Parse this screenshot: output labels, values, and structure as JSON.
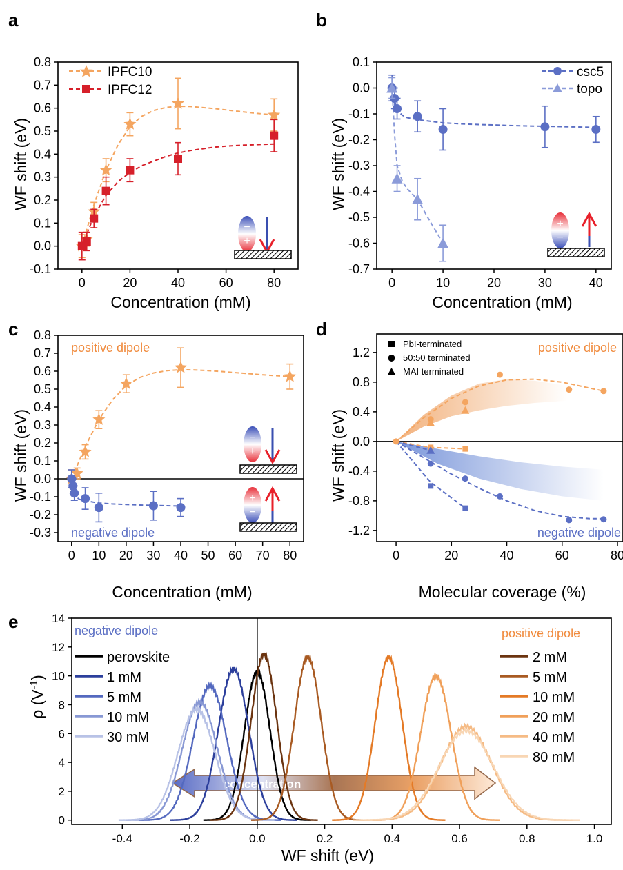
{
  "colors": {
    "orange": "#f4a560",
    "red": "#d6202a",
    "blue": "#5b6fc4",
    "lightblue": "#8b9bd9",
    "black": "#000000"
  },
  "chart_data": [
    {
      "panel": "a",
      "type": "scatter",
      "xlabel": "Concentration (mM)",
      "ylabel": "WF shift (eV)",
      "xlim": [
        -10,
        90
      ],
      "ylim": [
        -0.1,
        0.8
      ],
      "xticks": [
        0,
        20,
        40,
        60,
        80
      ],
      "yticks": [
        -0.1,
        0.0,
        0.1,
        0.2,
        0.3,
        0.4,
        0.5,
        0.6,
        0.7,
        0.8
      ],
      "legend_position": "top-left",
      "series": [
        {
          "name": "IPFC10",
          "marker": "star",
          "color_key": "orange",
          "x": [
            0,
            2,
            5,
            10,
            20,
            40,
            80
          ],
          "y": [
            0.0,
            0.03,
            0.15,
            0.33,
            0.53,
            0.62,
            0.57
          ],
          "err": [
            0.05,
            0.03,
            0.04,
            0.05,
            0.05,
            0.11,
            0.07
          ]
        },
        {
          "name": "IPFC12",
          "marker": "square",
          "color_key": "red",
          "x": [
            0,
            2,
            5,
            10,
            20,
            40,
            80
          ],
          "y": [
            0.0,
            0.02,
            0.12,
            0.24,
            0.33,
            0.38,
            0.48
          ],
          "err": [
            0.06,
            0.04,
            0.04,
            0.06,
            0.05,
            0.07,
            0.07
          ]
        }
      ],
      "fits": [
        {
          "color_key": "orange",
          "x": [
            0,
            5,
            10,
            15,
            20,
            25,
            30,
            35,
            40,
            45,
            50,
            55,
            60,
            65,
            70,
            75,
            80
          ],
          "y": [
            0,
            0.18,
            0.33,
            0.44,
            0.52,
            0.565,
            0.59,
            0.603,
            0.608,
            0.607,
            0.603,
            0.598,
            0.592,
            0.586,
            0.58,
            0.575,
            0.57
          ]
        },
        {
          "color_key": "red",
          "x": [
            0,
            5,
            10,
            15,
            20,
            25,
            30,
            35,
            40,
            45,
            50,
            55,
            60,
            65,
            70,
            75,
            80
          ],
          "y": [
            0,
            0.13,
            0.22,
            0.28,
            0.32,
            0.35,
            0.37,
            0.39,
            0.405,
            0.415,
            0.423,
            0.43,
            0.435,
            0.438,
            0.44,
            0.442,
            0.444
          ]
        }
      ]
    },
    {
      "panel": "b",
      "type": "scatter",
      "xlabel": "Concentration (mM)",
      "ylabel": "WF shift (eV)",
      "xlim": [
        -3,
        43
      ],
      "ylim": [
        -0.7,
        0.1
      ],
      "xticks": [
        0,
        10,
        20,
        30,
        40
      ],
      "yticks": [
        -0.7,
        -0.6,
        -0.5,
        -0.4,
        -0.3,
        -0.2,
        -0.1,
        0.0,
        0.1
      ],
      "legend_position": "top-right",
      "series": [
        {
          "name": "csc5",
          "marker": "circle",
          "color_key": "blue",
          "x": [
            0,
            0.5,
            1,
            5,
            10,
            30,
            40
          ],
          "y": [
            0.0,
            -0.04,
            -0.08,
            -0.11,
            -0.16,
            -0.15,
            -0.16
          ],
          "err": [
            0.05,
            0.04,
            0.04,
            0.06,
            0.08,
            0.08,
            0.05
          ]
        },
        {
          "name": "topo",
          "marker": "triangle",
          "color_key": "lightblue",
          "x": [
            0,
            1,
            5,
            10
          ],
          "y": [
            0.0,
            -0.35,
            -0.43,
            -0.6
          ],
          "err": [
            0.04,
            0.05,
            0.08,
            0.07
          ]
        }
      ],
      "fits": [
        {
          "color_key": "blue",
          "x": [
            0,
            0.5,
            1,
            2,
            3,
            5,
            8,
            10,
            15,
            20,
            25,
            30,
            35,
            40
          ],
          "y": [
            0,
            -0.05,
            -0.085,
            -0.105,
            -0.115,
            -0.122,
            -0.13,
            -0.135,
            -0.14,
            -0.143,
            -0.146,
            -0.148,
            -0.15,
            -0.152
          ]
        },
        {
          "color_key": "lightblue",
          "x": [
            0,
            0.5,
            1,
            2,
            3,
            5,
            7,
            10
          ],
          "y": [
            0,
            -0.18,
            -0.3,
            -0.36,
            -0.39,
            -0.43,
            -0.5,
            -0.6
          ]
        }
      ]
    },
    {
      "panel": "c",
      "type": "scatter",
      "xlabel": "Concentration (mM)",
      "ylabel": "WF shift (eV)",
      "xlim": [
        -5,
        85
      ],
      "ylim": [
        -0.35,
        0.8
      ],
      "xticks": [
        0,
        10,
        20,
        30,
        40,
        50,
        60,
        70,
        80
      ],
      "yticks": [
        -0.3,
        -0.2,
        -0.1,
        0.0,
        0.1,
        0.2,
        0.3,
        0.4,
        0.5,
        0.6,
        0.7,
        0.8
      ],
      "annotations": [
        "positive dipole",
        "negative dipole"
      ],
      "series": [
        {
          "name": "positive",
          "marker": "star",
          "color_key": "orange",
          "x": [
            0,
            2,
            5,
            10,
            20,
            40,
            80
          ],
          "y": [
            0.0,
            0.03,
            0.15,
            0.33,
            0.53,
            0.62,
            0.57
          ],
          "err": [
            0.05,
            0.03,
            0.04,
            0.05,
            0.05,
            0.11,
            0.07
          ]
        },
        {
          "name": "negative",
          "marker": "circle",
          "color_key": "blue",
          "x": [
            0,
            0.5,
            1,
            5,
            10,
            30,
            40
          ],
          "y": [
            0.0,
            -0.04,
            -0.08,
            -0.11,
            -0.16,
            -0.15,
            -0.16
          ],
          "err": [
            0.05,
            0.04,
            0.04,
            0.06,
            0.08,
            0.08,
            0.05
          ]
        }
      ],
      "fits": [
        {
          "color_key": "orange",
          "x": [
            0,
            5,
            10,
            15,
            20,
            25,
            30,
            35,
            40,
            45,
            50,
            55,
            60,
            65,
            70,
            75,
            80
          ],
          "y": [
            0,
            0.18,
            0.33,
            0.44,
            0.52,
            0.565,
            0.59,
            0.603,
            0.608,
            0.607,
            0.603,
            0.598,
            0.592,
            0.586,
            0.58,
            0.575,
            0.57
          ]
        },
        {
          "color_key": "blue",
          "x": [
            0,
            0.5,
            1,
            2,
            3,
            5,
            8,
            10,
            15,
            20,
            25,
            30,
            35,
            40
          ],
          "y": [
            0,
            -0.05,
            -0.085,
            -0.105,
            -0.115,
            -0.122,
            -0.13,
            -0.135,
            -0.14,
            -0.143,
            -0.146,
            -0.148,
            -0.15,
            -0.152
          ]
        }
      ]
    },
    {
      "panel": "d",
      "type": "scatter",
      "xlabel": "Molecular coverage (%)",
      "ylabel": "WF shift (eV)",
      "xlim": [
        -7,
        82
      ],
      "ylim": [
        -1.35,
        1.45
      ],
      "xticks": [
        0,
        20,
        40,
        60,
        80
      ],
      "yticks": [
        -1.2,
        -0.8,
        -0.4,
        0.0,
        0.4,
        0.8,
        1.2
      ],
      "legend_position": "top-left",
      "annotations": [
        "positive dipole",
        "negative dipole"
      ],
      "legend": [
        {
          "marker": "square",
          "label": "PbI-terminated"
        },
        {
          "marker": "circle",
          "label": "50:50 terminated"
        },
        {
          "marker": "triangle",
          "label": "MAI terminated"
        }
      ],
      "series": [
        {
          "name": "positive-circle",
          "marker": "circle",
          "color_key": "orange",
          "x": [
            0,
            12.5,
            25,
            37.5,
            62.5,
            75
          ],
          "y": [
            0,
            0.3,
            0.53,
            0.9,
            0.7,
            0.68
          ]
        },
        {
          "name": "positive-triangle",
          "marker": "triangle",
          "color_key": "orange",
          "x": [
            12.5,
            25
          ],
          "y": [
            0.25,
            0.42
          ]
        },
        {
          "name": "positive-square",
          "marker": "square",
          "color_key": "orange",
          "x": [
            12.5,
            25
          ],
          "y": [
            -0.08,
            -0.1
          ]
        },
        {
          "name": "negative-circle",
          "marker": "circle",
          "color_key": "blue",
          "x": [
            12.5,
            25,
            37.5,
            62.5,
            75
          ],
          "y": [
            -0.3,
            -0.5,
            -0.74,
            -1.06,
            -1.05
          ]
        },
        {
          "name": "negative-triangle",
          "marker": "triangle",
          "color_key": "blue",
          "x": [
            12.5
          ],
          "y": [
            -0.12
          ]
        },
        {
          "name": "negative-square",
          "marker": "square",
          "color_key": "blue",
          "x": [
            12.5,
            25
          ],
          "y": [
            -0.6,
            -0.9
          ]
        }
      ],
      "fits": [
        {
          "color_key": "orange",
          "x": [
            0,
            10,
            20,
            30,
            40,
            50,
            60,
            70,
            75
          ],
          "y": [
            0,
            0.32,
            0.58,
            0.75,
            0.83,
            0.84,
            0.8,
            0.72,
            0.68
          ]
        },
        {
          "color_key": "orange",
          "x": [
            0,
            12.5,
            25
          ],
          "y": [
            0,
            -0.08,
            -0.1
          ]
        },
        {
          "color_key": "blue",
          "x": [
            0,
            10,
            20,
            30,
            40,
            50,
            60,
            70,
            75
          ],
          "y": [
            0,
            -0.22,
            -0.44,
            -0.63,
            -0.8,
            -0.93,
            -1.01,
            -1.04,
            -1.04
          ]
        },
        {
          "color_key": "blue",
          "x": [
            0,
            12.5,
            25
          ],
          "y": [
            0,
            -0.55,
            -0.9
          ]
        },
        {
          "color_key": "blue",
          "x": [
            0,
            12.5
          ],
          "y": [
            0,
            -0.12
          ]
        }
      ],
      "bands": [
        {
          "color_key": "orange",
          "upper": {
            "x": [
              0,
              10,
              20,
              30,
              40,
              50,
              62
            ],
            "y": [
              0,
              0.36,
              0.62,
              0.78,
              0.84,
              0.82,
              0.75
            ]
          },
          "lower": {
            "x": [
              0,
              10,
              20,
              30,
              40,
              50,
              62
            ],
            "y": [
              0,
              0.2,
              0.34,
              0.42,
              0.48,
              0.52,
              0.55
            ]
          }
        },
        {
          "color_key": "blue",
          "upper": {
            "x": [
              0,
              15,
              30,
              45,
              60,
              75
            ],
            "y": [
              0,
              -0.1,
              -0.2,
              -0.28,
              -0.34,
              -0.38
            ]
          },
          "lower": {
            "x": [
              0,
              15,
              30,
              45,
              60,
              75
            ],
            "y": [
              0,
              -0.3,
              -0.5,
              -0.64,
              -0.74,
              -0.8
            ]
          }
        }
      ]
    },
    {
      "panel": "e",
      "type": "line",
      "xlabel": "WF shift (eV)",
      "ylabel": "ρ (V⁻¹)",
      "xlim": [
        -0.55,
        1.05
      ],
      "ylim": [
        -0.3,
        14
      ],
      "xticks": [
        -0.4,
        -0.2,
        0.0,
        0.2,
        0.4,
        0.6,
        0.8,
        1.0
      ],
      "yticks": [
        0,
        2,
        4,
        6,
        8,
        10,
        12,
        14
      ],
      "annotations": [
        "negative dipole",
        "positive dipole",
        "concentration"
      ],
      "series": [
        {
          "name": "perovskite",
          "center": 0.0,
          "height": 10.3,
          "width": 0.038,
          "color": "#000000"
        },
        {
          "name": "1 mM",
          "center": -0.07,
          "height": 10.5,
          "width": 0.045,
          "color": "#2c3f9c"
        },
        {
          "name": "5 mM",
          "center": -0.14,
          "height": 9.3,
          "width": 0.05,
          "color": "#5469bf"
        },
        {
          "name": "10 mM",
          "center": -0.17,
          "height": 8.2,
          "width": 0.052,
          "color": "#8898d4"
        },
        {
          "name": "30 mM",
          "center": -0.18,
          "height": 7.7,
          "width": 0.055,
          "color": "#b8c2e6"
        },
        {
          "name": "2 mM",
          "center": 0.02,
          "height": 11.5,
          "width": 0.038,
          "color": "#6b3410"
        },
        {
          "name": "5 mM",
          "center": 0.15,
          "height": 11.3,
          "width": 0.04,
          "color": "#a85a22"
        },
        {
          "name": "10 mM",
          "center": 0.39,
          "height": 11.3,
          "width": 0.04,
          "color": "#e47a26"
        },
        {
          "name": "20 mM",
          "center": 0.53,
          "height": 10.0,
          "width": 0.045,
          "color": "#f0a05a"
        },
        {
          "name": "40 mM",
          "center": 0.62,
          "height": 6.5,
          "width": 0.075,
          "color": "#f5bb85"
        },
        {
          "name": "80 mM",
          "center": 0.62,
          "height": 6.2,
          "width": 0.08,
          "color": "#f8d6b4"
        }
      ]
    }
  ],
  "panels": {
    "a": {
      "label": "a"
    },
    "b": {
      "label": "b"
    },
    "c": {
      "label": "c"
    },
    "d": {
      "label": "d"
    },
    "e": {
      "label": "e"
    }
  },
  "legends": {
    "a": [
      "IPFC10",
      "IPFC12"
    ],
    "b": [
      "csc5",
      "topo"
    ],
    "d": [
      "PbI-terminated",
      "50:50 terminated",
      "MAI terminated"
    ],
    "e_neg_title": "negative dipole",
    "e_pos_title": "positive dipole",
    "e_neg": [
      "perovskite",
      "1 mM",
      "5 mM",
      "10 mM",
      "30 mM"
    ],
    "e_pos": [
      "2 mM",
      "5 mM",
      "10 mM",
      "20 mM",
      "40 mM",
      "80 mM"
    ],
    "arrow_text": "concentration"
  },
  "axis_text": {
    "a_x": "Concentration (mM)",
    "a_y": "WF shift (eV)",
    "b_x": "Concentration (mM)",
    "b_y": "WF shift (eV)",
    "c_x": "Concentration (mM)",
    "c_y": "WF shift (eV)",
    "d_x": "Molecular coverage (%)",
    "d_y": "WF shift (eV)",
    "e_x": "WF shift (eV)",
    "e_y_main": "ρ (V",
    "e_y_sup": "-1",
    "e_y_end": ")",
    "c_pos": "positive dipole",
    "c_neg": "negative dipole",
    "d_pos": "positive dipole",
    "d_neg": "negative dipole"
  }
}
